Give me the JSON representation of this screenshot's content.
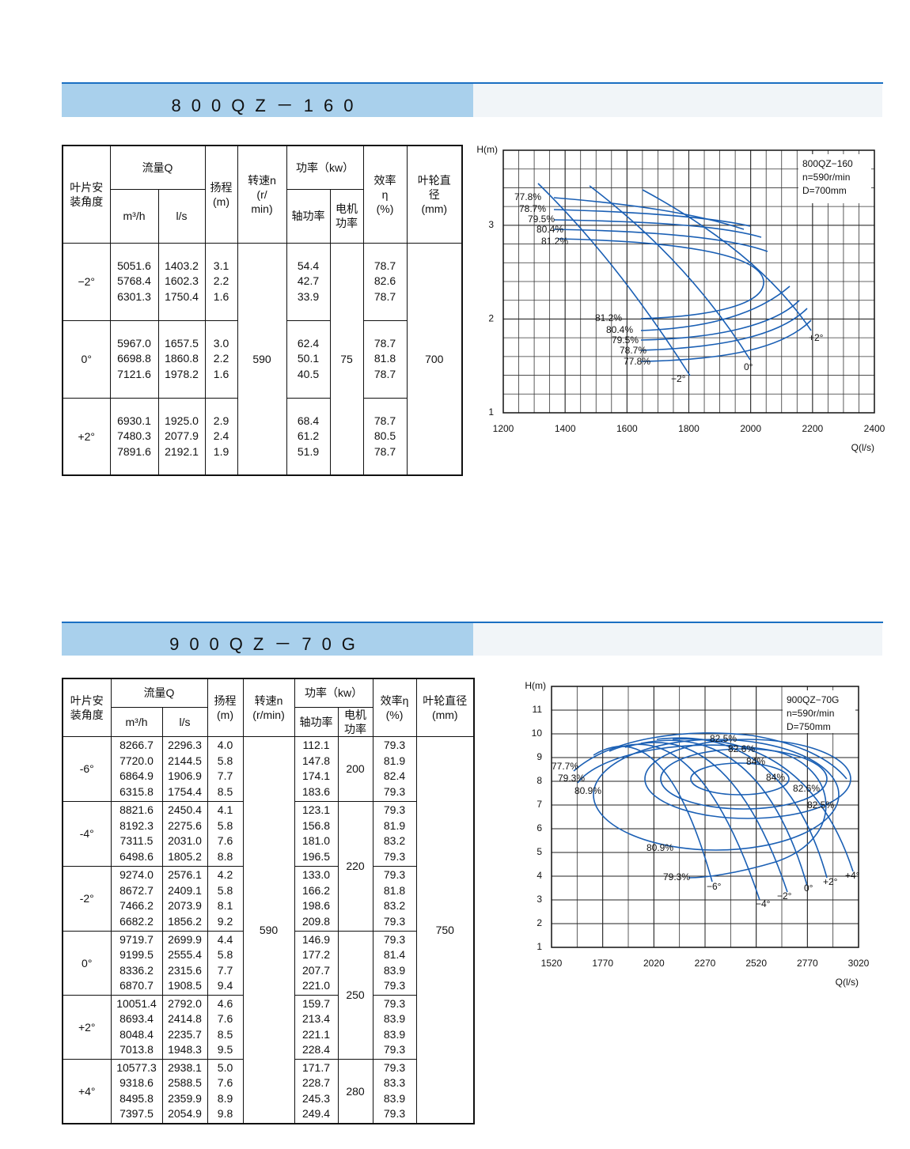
{
  "sections": [
    {
      "title": "800QZ－160",
      "table": {
        "header": {
          "angle": "叶片安\n装角度",
          "flow": "流量Q",
          "flow_m3h": "m³/h",
          "flow_ls": "l/s",
          "head": "扬程\n(m)",
          "speed": "转速n\n(r/\nmin)",
          "power": "功率（kw）",
          "shaft_power": "轴功率",
          "motor_power": "电机\n功率",
          "efficiency": "效率\nη\n(%)",
          "diameter": "叶轮直\n径\n(mm)"
        },
        "groups": [
          {
            "angle": "−2°",
            "rows": [
              [
                "5051.6",
                "1403.2",
                "3.1",
                "54.4",
                "78.7"
              ],
              [
                "5768.4",
                "1602.3",
                "2.2",
                "42.7",
                "82.6"
              ],
              [
                "6301.3",
                "1750.4",
                "1.6",
                "33.9",
                "78.7"
              ]
            ]
          },
          {
            "angle": "0°",
            "rows": [
              [
                "5967.0",
                "1657.5",
                "3.0",
                "62.4",
                "78.7"
              ],
              [
                "6698.8",
                "1860.8",
                "2.2",
                "50.1",
                "81.8"
              ],
              [
                "7121.6",
                "1978.2",
                "1.6",
                "40.5",
                "78.7"
              ]
            ]
          },
          {
            "angle": "+2°",
            "rows": [
              [
                "6930.1",
                "1925.0",
                "2.9",
                "68.4",
                "78.7"
              ],
              [
                "7480.3",
                "2077.9",
                "2.4",
                "61.2",
                "80.5"
              ],
              [
                "7891.6",
                "2192.1",
                "1.9",
                "51.9",
                "78.7"
              ]
            ]
          }
        ],
        "speed": "590",
        "motor_power": [
          "75"
        ],
        "diameter": "700"
      },
      "chart": {
        "y_label": "H(m)",
        "x_label": "Q(l/s)",
        "legend": [
          "800QZ−160",
          "n=590r/min",
          "D=700mm"
        ],
        "xlim": [
          1200,
          2400
        ],
        "xticks": [
          1200,
          1400,
          1600,
          1800,
          2000,
          2200,
          2400
        ],
        "ylim": [
          1,
          3.8
        ],
        "yticks": [
          1,
          2,
          3
        ],
        "grid_step": [
          50,
          0.2
        ],
        "annotations": [
          "77.8%",
          "78.7%",
          "79.5%",
          "80.4%",
          "81.2%",
          "81.2%",
          "80.4%",
          "79.5%",
          "78.7%",
          "77.8%",
          "−2°",
          "0°",
          "+2°"
        ]
      }
    },
    {
      "title": "900QZ－70G",
      "table": {
        "header": {
          "angle": "叶片安\n装角度",
          "flow": "流量Q",
          "flow_m3h": "m³/h",
          "flow_ls": "l/s",
          "head": "扬程\n(m)",
          "speed": "转速n\n(r/min)",
          "power": "功率（kw）",
          "shaft_power": "轴功率",
          "motor_power": "电机\n功率",
          "efficiency": "效率η\n(%)",
          "diameter": "叶轮直径\n(mm)"
        },
        "groups": [
          {
            "angle": "-6°",
            "rows": [
              [
                "8266.7",
                "2296.3",
                "4.0",
                "112.1",
                "79.3"
              ],
              [
                "7720.0",
                "2144.5",
                "5.8",
                "147.8",
                "81.9"
              ],
              [
                "6864.9",
                "1906.9",
                "7.7",
                "174.1",
                "82.4"
              ],
              [
                "6315.8",
                "1754.4",
                "8.5",
                "183.6",
                "79.3"
              ]
            ]
          },
          {
            "angle": "-4°",
            "rows": [
              [
                "8821.6",
                "2450.4",
                "4.1",
                "123.1",
                "79.3"
              ],
              [
                "8192.3",
                "2275.6",
                "5.8",
                "156.8",
                "81.9"
              ],
              [
                "7311.5",
                "2031.0",
                "7.6",
                "181.0",
                "83.2"
              ],
              [
                "6498.6",
                "1805.2",
                "8.8",
                "196.5",
                "79.3"
              ]
            ]
          },
          {
            "angle": "-2°",
            "rows": [
              [
                "9274.0",
                "2576.1",
                "4.2",
                "133.0",
                "79.3"
              ],
              [
                "8672.7",
                "2409.1",
                "5.8",
                "166.2",
                "81.8"
              ],
              [
                "7466.2",
                "2073.9",
                "8.1",
                "198.6",
                "83.2"
              ],
              [
                "6682.2",
                "1856.2",
                "9.2",
                "209.8",
                "79.3"
              ]
            ]
          },
          {
            "angle": "0°",
            "rows": [
              [
                "9719.7",
                "2699.9",
                "4.4",
                "146.9",
                "79.3"
              ],
              [
                "9199.5",
                "2555.4",
                "5.8",
                "177.2",
                "81.4"
              ],
              [
                "8336.2",
                "2315.6",
                "7.7",
                "207.7",
                "83.9"
              ],
              [
                "6870.7",
                "1908.5",
                "9.4",
                "221.0",
                "79.3"
              ]
            ]
          },
          {
            "angle": "+2°",
            "rows": [
              [
                "10051.4",
                "2792.0",
                "4.6",
                "159.7",
                "79.3"
              ],
              [
                "8693.4",
                "2414.8",
                "7.6",
                "213.4",
                "83.9"
              ],
              [
                "8048.4",
                "2235.7",
                "8.5",
                "221.1",
                "83.9"
              ],
              [
                "7013.8",
                "1948.3",
                "9.5",
                "228.4",
                "79.3"
              ]
            ]
          },
          {
            "angle": "+4°",
            "rows": [
              [
                "10577.3",
                "2938.1",
                "5.0",
                "171.7",
                "79.3"
              ],
              [
                "9318.6",
                "2588.5",
                "7.6",
                "228.7",
                "83.3"
              ],
              [
                "8495.8",
                "2359.9",
                "8.9",
                "245.3",
                "83.9"
              ],
              [
                "7397.5",
                "2054.9",
                "9.8",
                "249.4",
                "79.3"
              ]
            ]
          }
        ],
        "speed": "590",
        "motor_power": [
          "200",
          "220",
          "250",
          "280"
        ],
        "diameter": "750"
      },
      "chart": {
        "y_label": "H(m)",
        "x_label": "Q(l/s)",
        "legend": [
          "900QZ−70G",
          "n=590r/min",
          "D=750mm"
        ],
        "xlim": [
          1520,
          3020
        ],
        "xticks": [
          1520,
          1770,
          2020,
          2270,
          2520,
          2770,
          3020
        ],
        "ylim": [
          1,
          12
        ],
        "yticks": [
          1,
          2,
          3,
          4,
          5,
          6,
          7,
          8,
          9,
          10,
          11
        ],
        "grid_step": [
          125,
          1
        ],
        "annotations": [
          "82.5%",
          "82.6%",
          "84%",
          "84%",
          "82.6%",
          "82.5%",
          "77.7%",
          "79.3%",
          "80.9%",
          "80.9%",
          "79.3%",
          "−6°",
          "−4°",
          "−2°",
          "0°",
          "+2°",
          "+4°"
        ]
      }
    }
  ]
}
